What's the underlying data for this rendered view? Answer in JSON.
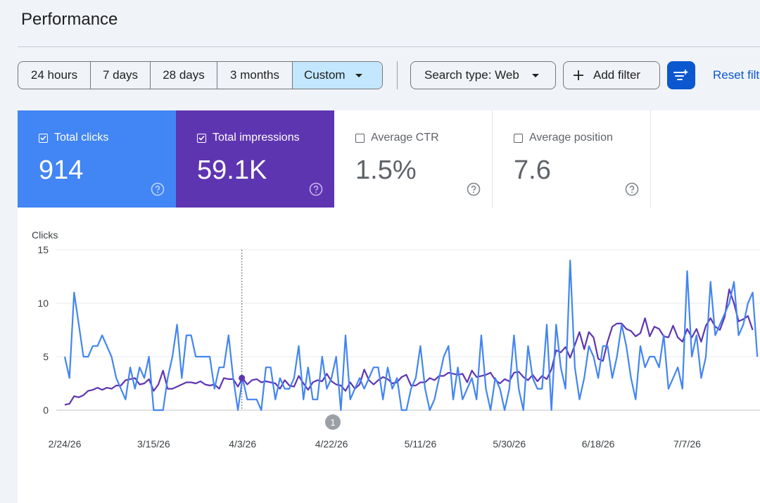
{
  "page": {
    "title": "Performance"
  },
  "date_range": {
    "options": [
      "24 hours",
      "7 days",
      "28 days",
      "3 months",
      "Custom"
    ],
    "selected": "Custom"
  },
  "filters": {
    "search_type": "Search type: Web",
    "add_filter": "Add filter",
    "reset": "Reset filters"
  },
  "metrics": [
    {
      "label": "Total clicks",
      "value": "914",
      "checked": true,
      "color": "#4285f4"
    },
    {
      "label": "Total impressions",
      "value": "59.1K",
      "checked": true,
      "color": "#5e35b1"
    },
    {
      "label": "Average CTR",
      "value": "1.5%",
      "checked": false
    },
    {
      "label": "Average position",
      "value": "7.6",
      "checked": false
    }
  ],
  "chart_data": {
    "type": "line",
    "ylabel": "Clicks",
    "ylim": [
      0,
      15
    ],
    "yticks": [
      0,
      5,
      10,
      15
    ],
    "x_tick_labels": [
      "2/24/26",
      "3/15/26",
      "4/3/26",
      "4/22/26",
      "5/11/26",
      "5/30/26",
      "6/18/26",
      "7/7/26"
    ],
    "annotation": "1",
    "hover_date": "4/3/26",
    "series": [
      {
        "name": "Total clicks",
        "color": "#4285f4",
        "values": [
          5,
          3,
          11,
          8,
          5,
          5,
          6,
          6,
          7,
          6,
          5,
          3,
          2,
          1,
          4,
          2,
          4,
          3,
          5,
          0,
          0,
          0,
          3,
          5,
          8,
          3,
          7,
          7,
          5,
          5,
          5,
          5,
          2,
          4,
          4,
          7,
          3,
          0,
          3,
          1,
          1,
          1,
          0,
          4,
          4,
          1,
          3,
          2,
          2,
          3,
          6,
          1,
          4,
          1,
          1,
          5,
          2,
          3,
          5,
          0,
          7,
          1,
          2,
          3,
          2,
          3,
          4,
          4,
          1,
          4,
          2,
          3,
          0,
          0,
          2,
          3,
          6,
          2,
          0,
          1,
          3,
          5,
          6,
          1,
          4,
          1,
          2,
          3,
          1,
          7,
          2,
          0,
          3,
          2,
          0,
          2,
          7,
          2,
          0,
          6,
          3,
          2,
          2,
          8,
          0,
          8,
          4,
          2,
          14,
          4,
          1,
          3,
          6,
          5,
          3,
          6,
          6,
          3,
          5,
          8,
          6,
          3,
          1,
          6,
          4,
          5,
          5,
          4,
          7,
          2,
          3,
          4,
          2,
          13,
          5,
          7,
          3,
          5,
          12,
          7,
          8,
          9,
          10,
          12,
          7,
          8,
          10,
          11,
          5
        ]
      },
      {
        "name": "Total impressions",
        "color": "#5e35b1",
        "values": [
          0.5,
          0.6,
          1.3,
          1.2,
          1.4,
          1.8,
          1.9,
          2.1,
          1.9,
          2.1,
          2,
          2.3,
          2.3,
          2.8,
          2.9,
          3,
          2.4,
          2.5,
          2.9,
          1.8,
          2.4,
          3.7,
          2,
          2,
          2.2,
          2.4,
          2.6,
          2.6,
          2.5,
          2.7,
          2.4,
          2.3,
          2.4,
          2,
          3,
          2.9,
          2.9,
          2.2,
          3,
          2.4,
          2.8,
          2.9,
          2.6,
          2.7,
          2.6,
          2.5,
          2,
          2.8,
          2.3,
          2.2,
          3.2,
          2.5,
          1.9,
          2.6,
          2.8,
          2.7,
          3.4,
          2.7,
          2.4,
          2.3,
          1.8,
          2.6,
          2,
          2.4,
          3.8,
          2.8,
          2.4,
          2.8,
          3.1,
          2.9,
          2.5,
          2.6,
          3.1,
          3.3,
          2.3,
          2.3,
          2.6,
          2.6,
          3,
          2.8,
          3.2,
          3.2,
          3.5,
          3.4,
          3.3,
          3.4,
          2.6,
          3.7,
          3.1,
          3.2,
          3.3,
          3.5,
          2.8,
          2.5,
          2.9,
          2.7,
          3.5,
          3.6,
          3.1,
          2.8,
          3.3,
          2.7,
          3.2,
          2.9,
          3.8,
          5.6,
          5.4,
          5.9,
          4.9,
          6.1,
          7.3,
          5.7,
          7.3,
          6.8,
          4.8,
          4.6,
          6.4,
          7.8,
          8.1,
          8.1,
          7.6,
          7.4,
          6.9,
          7.2,
          8.6,
          6.9,
          7.8,
          7.6,
          6.9,
          6.8,
          7.9,
          6.8,
          6.4,
          7.6,
          6.8,
          7.6,
          6.4,
          7.9,
          8.6,
          7.8,
          7.5,
          8.7,
          11.3,
          10,
          8.3,
          8.5,
          8.8,
          7.5
        ]
      }
    ]
  }
}
